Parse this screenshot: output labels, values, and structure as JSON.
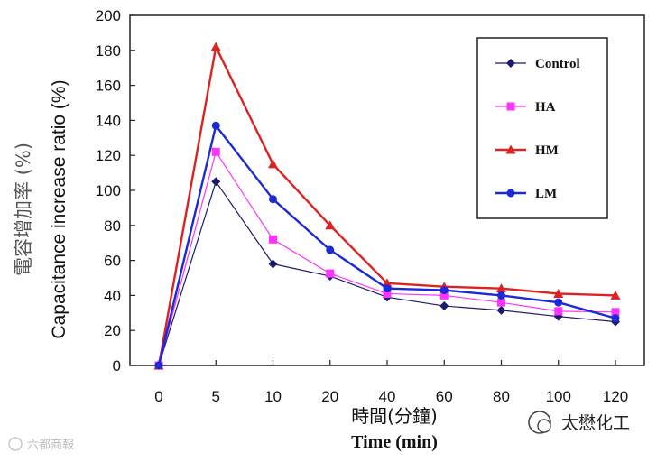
{
  "chart_data": {
    "type": "line",
    "categories": [
      "0",
      "5",
      "10",
      "20",
      "40",
      "60",
      "80",
      "100",
      "120"
    ],
    "series": [
      {
        "name": "Control",
        "color": "#1a1a6e",
        "marker": "diamond",
        "stroke_weight": "thin",
        "values": [
          0,
          105,
          58,
          51,
          39,
          34,
          31.5,
          28,
          25
        ]
      },
      {
        "name": "HA",
        "color": "#ff33ff",
        "marker": "square",
        "stroke_weight": "thin",
        "values": [
          0,
          122,
          72,
          52.5,
          41,
          40,
          36,
          31,
          30.5
        ]
      },
      {
        "name": "HM",
        "color": "#dd2222",
        "marker": "triangle",
        "stroke_weight": "thick",
        "values": [
          0,
          182,
          115,
          80,
          47,
          45,
          44,
          41,
          40
        ]
      },
      {
        "name": "LM",
        "color": "#1a2ad8",
        "marker": "circle",
        "stroke_weight": "thick",
        "values": [
          0,
          137,
          95,
          66,
          44,
          43,
          40,
          36,
          27
        ]
      }
    ],
    "y_ticks": [
      "0",
      "20",
      "40",
      "60",
      "80",
      "100",
      "120",
      "140",
      "160",
      "180",
      "200"
    ],
    "ylim": [
      0,
      200
    ],
    "ylabel_en": "Capacitance increase ratio (%)",
    "ylabel_cn": "電容增加率 (%)",
    "xlabel_cn": "時間(分鐘)",
    "xlabel_en": "Time (min)",
    "legend_position": "top-right",
    "grid": false
  },
  "watermark": {
    "left_text": "六都商報"
  },
  "brand": {
    "name": "太懋化工"
  }
}
